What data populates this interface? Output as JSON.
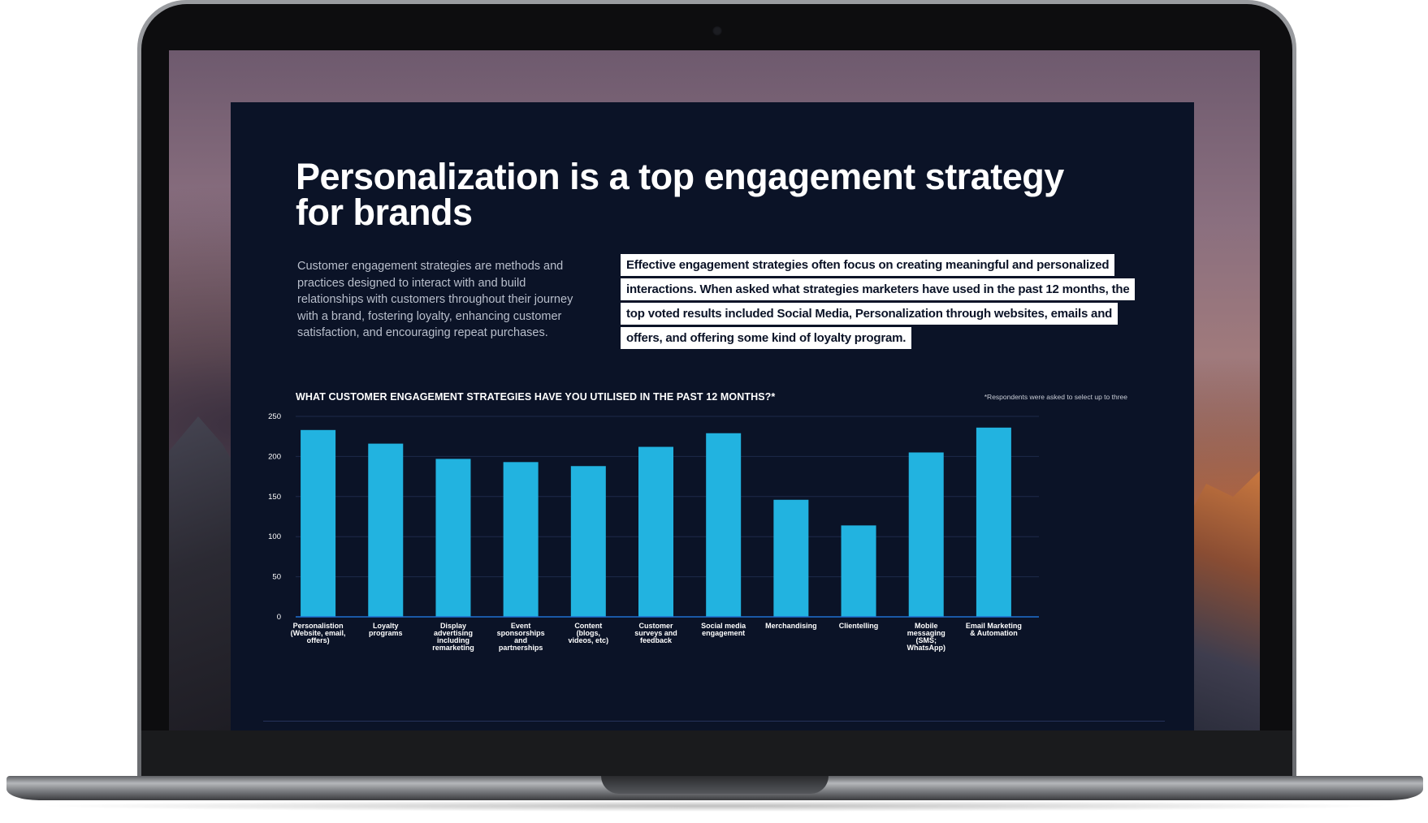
{
  "slide": {
    "title": "Personalization is a top engagement strategy for brands",
    "intro": "Customer engagement strategies are methods and practices designed to interact with and build relationships with customers throughout their journey with a brand, fostering loyalty, enhancing customer satisfaction, and encouraging repeat purchases.",
    "highlight_lines": [
      "Effective engagement strategies often focus on creating meaningful and personalized",
      "interactions. When asked what strategies marketers have used in the past 12 months, the",
      "top voted results included Social Media, Personalization through websites, emails and",
      "offers, and offering some kind of loyalty program."
    ],
    "chart_question": "WHAT CUSTOMER ENGAGEMENT STRATEGIES HAVE YOU UTILISED IN THE PAST 12 MONTHS?*",
    "chart_footnote": "*Respondents were asked to select up to three"
  },
  "colors": {
    "slide_background": "#0b1327",
    "bar": "#22b3e0",
    "axis": "#1f6fd0",
    "gridline": "#1e2a4a"
  },
  "chart_data": {
    "type": "bar",
    "title": "WHAT CUSTOMER ENGAGEMENT STRATEGIES HAVE YOU UTILISED IN THE PAST 12 MONTHS?*",
    "xlabel": "",
    "ylabel": "",
    "ylim": [
      0,
      250
    ],
    "yticks": [
      0,
      50,
      100,
      150,
      200,
      250
    ],
    "grid": true,
    "categories": [
      [
        "Personalistion",
        "(Website, email,",
        "offers)"
      ],
      [
        "Loyalty",
        "programs"
      ],
      [
        "Display",
        "advertising",
        "including",
        "remarketing"
      ],
      [
        "Event",
        "sponsorships",
        "and",
        "partnerships"
      ],
      [
        "Content",
        "(blogs,",
        "videos, etc)"
      ],
      [
        "Customer",
        "surveys and",
        "feedback"
      ],
      [
        "Social media",
        "engagement"
      ],
      [
        "Merchandising"
      ],
      [
        "Clientelling"
      ],
      [
        "Mobile",
        "messaging",
        "(SMS;",
        "WhatsApp)"
      ],
      [
        "Email Marketing",
        "& Automation"
      ]
    ],
    "values": [
      233,
      216,
      197,
      193,
      188,
      212,
      229,
      146,
      114,
      205,
      236
    ]
  }
}
